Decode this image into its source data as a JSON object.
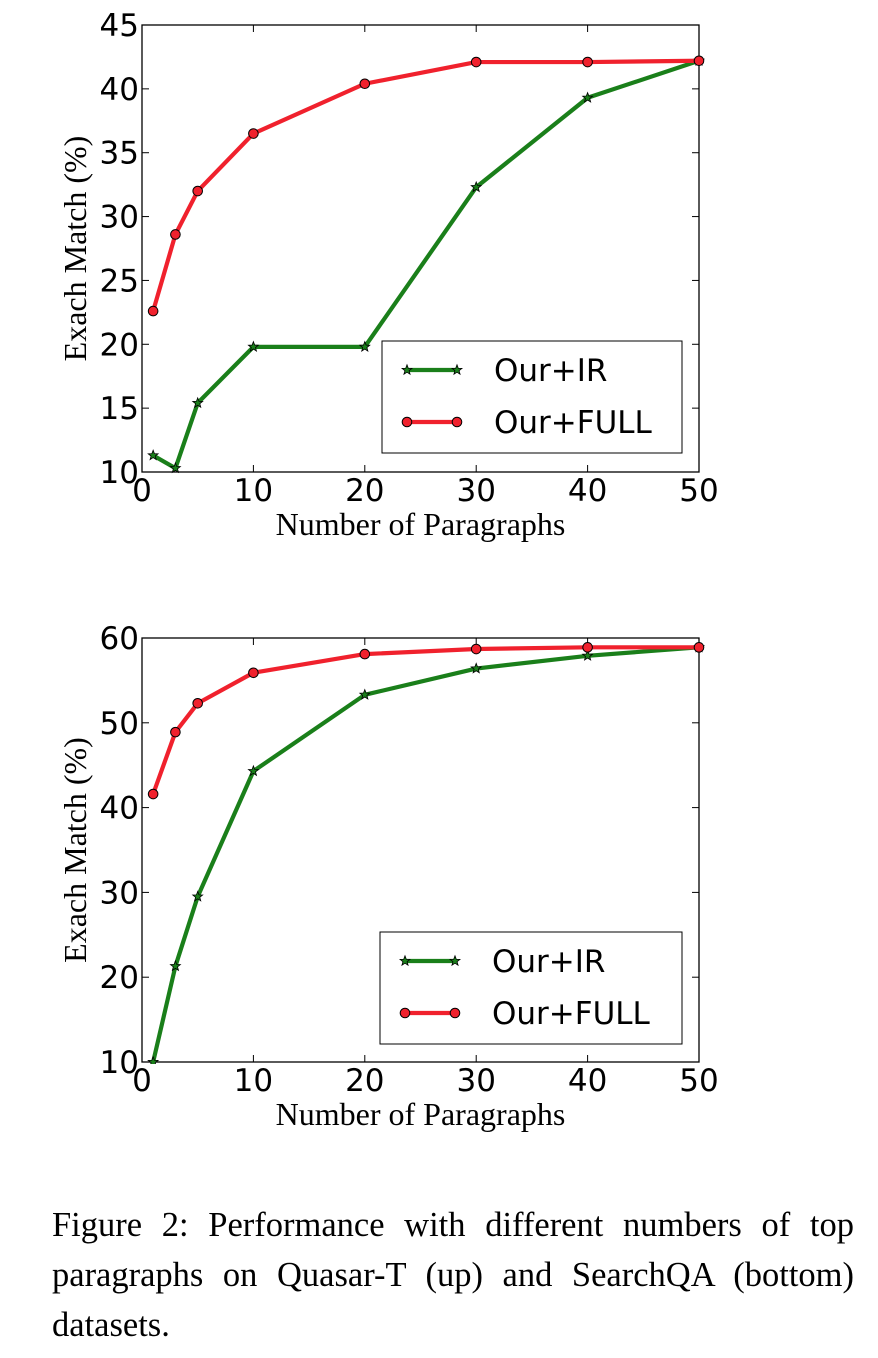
{
  "chart_data": [
    {
      "type": "line",
      "title": "",
      "xlabel": "Number of Paragraphs",
      "ylabel": "Exach Match (%)",
      "xlim": [
        0,
        50
      ],
      "ylim": [
        10,
        45
      ],
      "xticks": [
        0,
        10,
        20,
        30,
        40,
        50
      ],
      "yticks": [
        10,
        15,
        20,
        25,
        30,
        35,
        40,
        45
      ],
      "grid": false,
      "legend": "lower-right",
      "series": [
        {
          "name": "Our+IR",
          "color": "#1a7f1a",
          "marker": "star",
          "x": [
            1,
            3,
            5,
            10,
            20,
            30,
            40,
            50
          ],
          "y": [
            11.3,
            10.3,
            15.4,
            19.8,
            19.8,
            32.3,
            39.3,
            42.2
          ]
        },
        {
          "name": "Our+FULL",
          "color": "#f0212d",
          "marker": "circle",
          "x": [
            1,
            3,
            5,
            10,
            20,
            30,
            40,
            50
          ],
          "y": [
            22.6,
            28.6,
            32.0,
            36.5,
            40.4,
            42.1,
            42.1,
            42.2
          ]
        }
      ]
    },
    {
      "type": "line",
      "title": "",
      "xlabel": "Number of Paragraphs",
      "ylabel": "Exach Match (%)",
      "xlim": [
        0,
        50
      ],
      "ylim": [
        10,
        60
      ],
      "xticks": [
        0,
        10,
        20,
        30,
        40,
        50
      ],
      "yticks": [
        10,
        20,
        30,
        40,
        50,
        60
      ],
      "grid": false,
      "legend": "lower-right",
      "series": [
        {
          "name": "Our+IR",
          "color": "#1a7f1a",
          "marker": "star",
          "x": [
            1,
            3,
            5,
            10,
            20,
            30,
            40,
            50
          ],
          "y": [
            10.0,
            21.3,
            29.5,
            44.3,
            53.3,
            56.4,
            57.9,
            58.9
          ]
        },
        {
          "name": "Our+FULL",
          "color": "#f0212d",
          "marker": "circle",
          "x": [
            1,
            3,
            5,
            10,
            20,
            30,
            40,
            50
          ],
          "y": [
            41.6,
            48.9,
            52.3,
            55.9,
            58.1,
            58.7,
            58.9,
            58.9
          ]
        }
      ]
    }
  ],
  "caption": "Figure 2: Performance with different numbers of top paragraphs on Quasar-T (up) and SearchQA (bottom) datasets."
}
